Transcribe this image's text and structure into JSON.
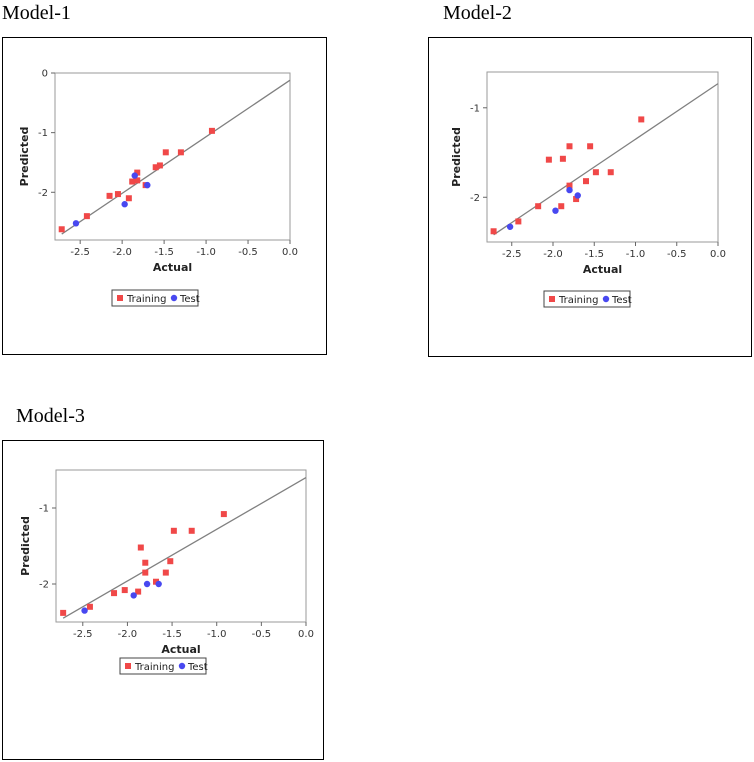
{
  "panels": [
    {
      "title": "Model-1"
    },
    {
      "title": "Model-2"
    },
    {
      "title": "Model-3"
    }
  ],
  "colors": {
    "training": "#f04848",
    "test": "#4848f0",
    "fit_line": "#808080"
  },
  "chart_data": [
    {
      "type": "scatter",
      "title": "Model-1",
      "xlabel": "Actual",
      "ylabel": "Predicted",
      "xlim": [
        -2.8,
        0.0
      ],
      "ylim": [
        -2.8,
        0.0
      ],
      "xticks": [
        "-2.5",
        "-2.0",
        "-1.5",
        "-1.0",
        "-0.5",
        "0.0"
      ],
      "yticks": [
        "0",
        "-1",
        "-2"
      ],
      "xtick_values": [
        -2.5,
        -2.0,
        -1.5,
        -1.0,
        -0.5,
        0.0
      ],
      "ytick_values": [
        0,
        -1,
        -2
      ],
      "grid": false,
      "legend": "bottom-center",
      "fit_line": {
        "x": [
          -2.72,
          0.0
        ],
        "y": [
          -2.7,
          -0.12
        ]
      },
      "series": [
        {
          "name": "Training",
          "marker": "square",
          "color": "#f04848",
          "points": [
            [
              -2.72,
              -2.62
            ],
            [
              -2.42,
              -2.4
            ],
            [
              -2.15,
              -2.06
            ],
            [
              -2.05,
              -2.03
            ],
            [
              -1.92,
              -2.1
            ],
            [
              -1.88,
              -1.82
            ],
            [
              -1.82,
              -1.8
            ],
            [
              -1.82,
              -1.67
            ],
            [
              -1.72,
              -1.88
            ],
            [
              -1.6,
              -1.58
            ],
            [
              -1.55,
              -1.55
            ],
            [
              -1.48,
              -1.33
            ],
            [
              -1.3,
              -1.33
            ],
            [
              -0.93,
              -0.97
            ]
          ]
        },
        {
          "name": "Test",
          "marker": "circle",
          "color": "#4848f0",
          "points": [
            [
              -2.55,
              -2.52
            ],
            [
              -1.97,
              -2.2
            ],
            [
              -1.85,
              -1.72
            ],
            [
              -1.7,
              -1.88
            ]
          ]
        }
      ]
    },
    {
      "type": "scatter",
      "title": "Model-2",
      "xlabel": "Actual",
      "ylabel": "Predicted",
      "xlim": [
        -2.8,
        0.0
      ],
      "ylim": [
        -2.5,
        -0.6
      ],
      "xticks": [
        "-2.5",
        "-2.0",
        "-1.5",
        "-1.0",
        "-0.5",
        "0.0"
      ],
      "yticks": [
        "-1",
        "-2"
      ],
      "xtick_values": [
        -2.5,
        -2.0,
        -1.5,
        -1.0,
        -0.5,
        0.0
      ],
      "ytick_values": [
        -1,
        -2
      ],
      "grid": false,
      "legend": "bottom-center",
      "fit_line": {
        "x": [
          -2.72,
          0.0
        ],
        "y": [
          -2.42,
          -0.73
        ]
      },
      "series": [
        {
          "name": "Training",
          "marker": "square",
          "color": "#f04848",
          "points": [
            [
              -2.72,
              -2.38
            ],
            [
              -2.42,
              -2.27
            ],
            [
              -2.18,
              -2.1
            ],
            [
              -2.05,
              -1.58
            ],
            [
              -1.88,
              -1.57
            ],
            [
              -1.9,
              -2.1
            ],
            [
              -1.8,
              -1.43
            ],
            [
              -1.8,
              -1.87
            ],
            [
              -1.72,
              -2.02
            ],
            [
              -1.6,
              -1.82
            ],
            [
              -1.55,
              -1.43
            ],
            [
              -1.48,
              -1.72
            ],
            [
              -1.3,
              -1.72
            ],
            [
              -0.93,
              -1.13
            ]
          ]
        },
        {
          "name": "Test",
          "marker": "circle",
          "color": "#4848f0",
          "points": [
            [
              -2.52,
              -2.33
            ],
            [
              -1.97,
              -2.15
            ],
            [
              -1.8,
              -1.92
            ],
            [
              -1.7,
              -1.98
            ]
          ]
        }
      ]
    },
    {
      "type": "scatter",
      "title": "Model-3",
      "xlabel": "Actual",
      "ylabel": "Predicted",
      "xlim": [
        -2.8,
        0.0
      ],
      "ylim": [
        -2.5,
        -0.5
      ],
      "xticks": [
        "-2.5",
        "-2.0",
        "-1.5",
        "-1.0",
        "-0.5",
        "0.0"
      ],
      "yticks": [
        "-1",
        "-2"
      ],
      "xtick_values": [
        -2.5,
        -2.0,
        -1.5,
        -1.0,
        -0.5,
        0.0
      ],
      "ytick_values": [
        -1,
        -2
      ],
      "grid": false,
      "legend": "bottom-center",
      "fit_line": {
        "x": [
          -2.72,
          0.0
        ],
        "y": [
          -2.45,
          -0.6
        ]
      },
      "series": [
        {
          "name": "Training",
          "marker": "square",
          "color": "#f04848",
          "points": [
            [
              -2.72,
              -2.38
            ],
            [
              -2.42,
              -2.3
            ],
            [
              -2.15,
              -2.12
            ],
            [
              -2.03,
              -2.08
            ],
            [
              -1.88,
              -2.1
            ],
            [
              -1.85,
              -1.52
            ],
            [
              -1.8,
              -1.72
            ],
            [
              -1.8,
              -1.85
            ],
            [
              -1.68,
              -1.97
            ],
            [
              -1.57,
              -1.85
            ],
            [
              -1.52,
              -1.7
            ],
            [
              -1.48,
              -1.3
            ],
            [
              -1.28,
              -1.3
            ],
            [
              -0.92,
              -1.08
            ]
          ]
        },
        {
          "name": "Test",
          "marker": "circle",
          "color": "#4848f0",
          "points": [
            [
              -2.48,
              -2.35
            ],
            [
              -1.93,
              -2.15
            ],
            [
              -1.78,
              -2.0
            ],
            [
              -1.65,
              -2.0
            ]
          ]
        }
      ]
    }
  ]
}
